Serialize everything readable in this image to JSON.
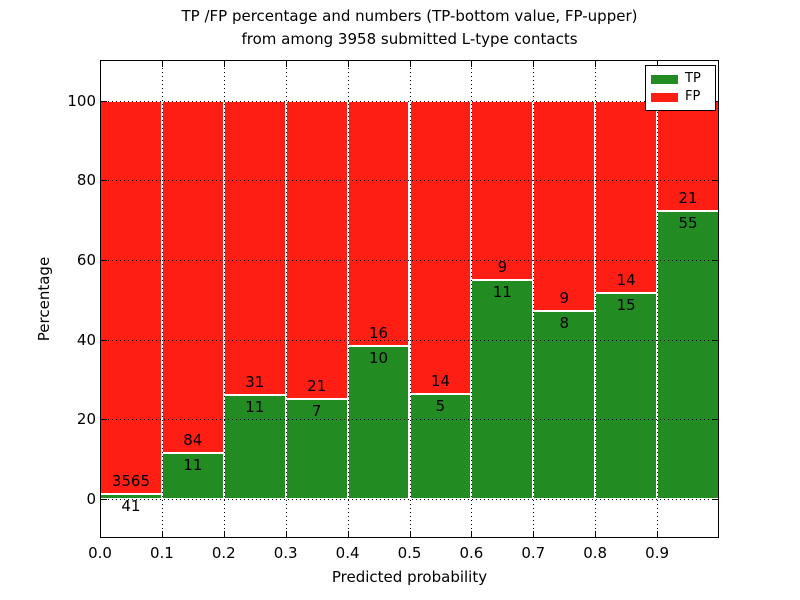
{
  "chart_data": {
    "type": "bar",
    "stacked": true,
    "normalized_to_percent": true,
    "title_line1": "TP /FP percentage and numbers (TP-bottom value, FP-upper)",
    "title_line2": "from among 3958 submitted L-type contacts",
    "xlabel": "Predicted probability",
    "ylabel": "Percentage",
    "xlim": [
      0.0,
      1.0
    ],
    "ylim": [
      -10,
      110
    ],
    "bin_width": 0.1,
    "grid": "dotted, drawn above bars",
    "legend_position": "upper right",
    "bar_edge_color": "#ffffff",
    "bins": [
      {
        "x0": 0.0,
        "x1": 0.1,
        "tp": 41,
        "fp": 3565,
        "tp_percent": 1.14
      },
      {
        "x0": 0.1,
        "x1": 0.2,
        "tp": 11,
        "fp": 84,
        "tp_percent": 11.58
      },
      {
        "x0": 0.2,
        "x1": 0.3,
        "tp": 11,
        "fp": 31,
        "tp_percent": 26.19
      },
      {
        "x0": 0.3,
        "x1": 0.4,
        "tp": 7,
        "fp": 21,
        "tp_percent": 25.0
      },
      {
        "x0": 0.4,
        "x1": 0.5,
        "tp": 10,
        "fp": 16,
        "tp_percent": 38.46
      },
      {
        "x0": 0.5,
        "x1": 0.6,
        "tp": 5,
        "fp": 14,
        "tp_percent": 26.32
      },
      {
        "x0": 0.6,
        "x1": 0.7,
        "tp": 11,
        "fp": 9,
        "tp_percent": 55.0
      },
      {
        "x0": 0.7,
        "x1": 0.8,
        "tp": 8,
        "fp": 9,
        "tp_percent": 47.06
      },
      {
        "x0": 0.8,
        "x1": 0.9,
        "tp": 15,
        "fp": 14,
        "tp_percent": 51.72
      },
      {
        "x0": 0.9,
        "x1": 1.0,
        "tp": 55,
        "fp": 21,
        "tp_percent": 72.37
      }
    ],
    "series": [
      {
        "name": "TP",
        "color": "#228b22",
        "counts": [
          41,
          11,
          11,
          7,
          10,
          5,
          11,
          8,
          15,
          55
        ]
      },
      {
        "name": "FP",
        "color": "#ff1e14",
        "counts": [
          3565,
          84,
          31,
          21,
          16,
          14,
          9,
          9,
          14,
          21
        ]
      }
    ],
    "xticks": [
      0.0,
      0.1,
      0.2,
      0.3,
      0.4,
      0.5,
      0.6,
      0.7,
      0.8,
      0.9
    ],
    "xtick_labels": [
      "0.0",
      "0.1",
      "0.2",
      "0.3",
      "0.4",
      "0.5",
      "0.6",
      "0.7",
      "0.8",
      "0.9"
    ],
    "yticks": [
      0,
      20,
      40,
      60,
      80,
      100
    ],
    "ytick_labels": [
      "0",
      "20",
      "40",
      "60",
      "80",
      "100"
    ]
  }
}
